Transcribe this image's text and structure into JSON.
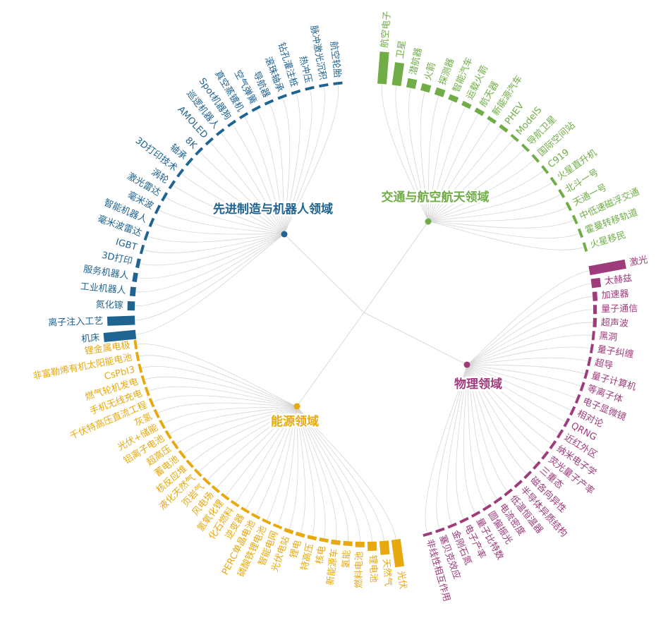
{
  "chart_data": {
    "type": "radial-dendrogram",
    "domains": [
      {
        "name": "交通与航空航天领域",
        "color": "#70ad47",
        "leaves": [
          {
            "label": "航空电子",
            "value": 3.5
          },
          {
            "label": "卫星",
            "value": 2.5
          },
          {
            "label": "潜航器",
            "value": 1.0
          },
          {
            "label": "火箭",
            "value": 0.8
          },
          {
            "label": "探测器",
            "value": 0.8
          },
          {
            "label": "智能汽车",
            "value": 0.6
          },
          {
            "label": "运载火箭",
            "value": 0.5
          },
          {
            "label": "航天器",
            "value": 0.5
          },
          {
            "label": "新能源汽车",
            "value": 0.4
          },
          {
            "label": "PHEV",
            "value": 0.4
          },
          {
            "label": "ModelS",
            "value": 0.3
          },
          {
            "label": "导航卫星",
            "value": 0.3
          },
          {
            "label": "国际空间站",
            "value": 0.3
          },
          {
            "label": "C919",
            "value": 0.3
          },
          {
            "label": "火星直升机",
            "value": 0.3
          },
          {
            "label": "北斗一号",
            "value": 0.3
          },
          {
            "label": "天通一号",
            "value": 0.3
          },
          {
            "label": "中低速磁浮交通",
            "value": 0.3
          },
          {
            "label": "霍曼转移轨道",
            "value": 0.3
          },
          {
            "label": "火星移民",
            "value": 0.3
          }
        ]
      },
      {
        "name": "物理领域",
        "color": "#9e3b7b",
        "leaves": [
          {
            "label": "激光",
            "value": 4.0
          },
          {
            "label": "太赫兹",
            "value": 1.0
          },
          {
            "label": "加速器",
            "value": 0.5
          },
          {
            "label": "量子通信",
            "value": 0.4
          },
          {
            "label": "超声波",
            "value": 0.4
          },
          {
            "label": "黑洞",
            "value": 0.3
          },
          {
            "label": "量子纠缠",
            "value": 0.3
          },
          {
            "label": "超导",
            "value": 0.3
          },
          {
            "label": "量子计算机",
            "value": 0.3
          },
          {
            "label": "等离子体",
            "value": 0.3
          },
          {
            "label": "电子显微镜",
            "value": 0.3
          },
          {
            "label": "相对论",
            "value": 0.3
          },
          {
            "label": "QRNG",
            "value": 0.3
          },
          {
            "label": "近红外区",
            "value": 0.3
          },
          {
            "label": "纳米电子学",
            "value": 0.3
          },
          {
            "label": "荧光量子产率",
            "value": 0.3
          },
          {
            "label": "三重态",
            "value": 0.3
          },
          {
            "label": "磁各向异性",
            "value": 0.3
          },
          {
            "label": "半导体异质结构",
            "value": 0.3
          },
          {
            "label": "低温恒温器",
            "value": 0.3
          },
          {
            "label": "电流密度",
            "value": 0.3
          },
          {
            "label": "圆偏振光",
            "value": 0.3
          },
          {
            "label": "量子比特数",
            "value": 0.3
          },
          {
            "label": "电子产率",
            "value": 0.3
          },
          {
            "label": "金刚石氮",
            "value": 0.3
          },
          {
            "label": "塞贝克效应",
            "value": 0.3
          },
          {
            "label": "非线性相互作用",
            "value": 0.3
          }
        ]
      },
      {
        "name": "能源领域",
        "color": "#e8a90e",
        "leaves": [
          {
            "label": "光伏",
            "value": 3.0
          },
          {
            "label": "天然气",
            "value": 1.5
          },
          {
            "label": "锂电池",
            "value": 1.0
          },
          {
            "label": "燃料电池",
            "value": 0.6
          },
          {
            "label": "氢能",
            "value": 0.5
          },
          {
            "label": "新能源车",
            "value": 0.5
          },
          {
            "label": "核电",
            "value": 0.4
          },
          {
            "label": "特高压",
            "value": 0.4
          },
          {
            "label": "锂电",
            "value": 0.4
          },
          {
            "label": "光伏电站",
            "value": 0.4
          },
          {
            "label": "智能电网",
            "value": 0.3
          },
          {
            "label": "磷酸铁锂电池",
            "value": 0.3
          },
          {
            "label": "PERC单晶电池",
            "value": 0.3
          },
          {
            "label": "逆变器",
            "value": 0.3
          },
          {
            "label": "化石燃料",
            "value": 0.3
          },
          {
            "label": "氢氧化锂",
            "value": 0.3
          },
          {
            "label": "风电场",
            "value": 0.3
          },
          {
            "label": "页岩气",
            "value": 0.3
          },
          {
            "label": "液化天然气",
            "value": 0.3
          },
          {
            "label": "核反应堆",
            "value": 0.3
          },
          {
            "label": "蓄电池",
            "value": 0.3
          },
          {
            "label": "超高压",
            "value": 0.3
          },
          {
            "label": "铝离子电池",
            "value": 0.3
          },
          {
            "label": "光伏+储能",
            "value": 0.3
          },
          {
            "label": "灰氢",
            "value": 0.3
          },
          {
            "label": "千伏特高压直流工程",
            "value": 0.3
          },
          {
            "label": "手机无线充电",
            "value": 0.3
          },
          {
            "label": "燃气轮机发电",
            "value": 0.3
          },
          {
            "label": "CsPbI3",
            "value": 0.3
          },
          {
            "label": "非富勒烯有机太阳能电池",
            "value": 0.3
          },
          {
            "label": "锂金属电极",
            "value": 0.3
          }
        ]
      },
      {
        "name": "先进制造与机器人领域",
        "color": "#1f6391",
        "leaves": [
          {
            "label": "机床",
            "value": 3.5
          },
          {
            "label": "离子注入工艺",
            "value": 3.0
          },
          {
            "label": "氮化镓",
            "value": 0.8
          },
          {
            "label": "工业机器人",
            "value": 0.6
          },
          {
            "label": "服务机器人",
            "value": 0.5
          },
          {
            "label": "3D打印",
            "value": 0.4
          },
          {
            "label": "IGBT",
            "value": 0.3
          },
          {
            "label": "毫米波雷达",
            "value": 0.3
          },
          {
            "label": "智能机器人",
            "value": 0.3
          },
          {
            "label": "毫米波",
            "value": 0.3
          },
          {
            "label": "激光雷达",
            "value": 0.3
          },
          {
            "label": "涡轮",
            "value": 0.3
          },
          {
            "label": "3D打印技术",
            "value": 0.3
          },
          {
            "label": "轴承",
            "value": 0.3
          },
          {
            "label": "8K",
            "value": 0.3
          },
          {
            "label": "AMOLED",
            "value": 0.3
          },
          {
            "label": "巡逻机器人",
            "value": 0.3
          },
          {
            "label": "Spot机器狗",
            "value": 0.3
          },
          {
            "label": "真空蒸镀机",
            "value": 0.3
          },
          {
            "label": "空气弹簧",
            "value": 0.3
          },
          {
            "label": "导航器",
            "value": 0.3
          },
          {
            "label": "滚珠轴承",
            "value": 0.3
          },
          {
            "label": "钻孔灌注桩",
            "value": 0.3
          },
          {
            "label": "热冲压",
            "value": 0.3
          },
          {
            "label": "脉冲激光沉积",
            "value": 0.3
          },
          {
            "label": "航空轮胎",
            "value": 0.3
          }
        ]
      }
    ]
  }
}
